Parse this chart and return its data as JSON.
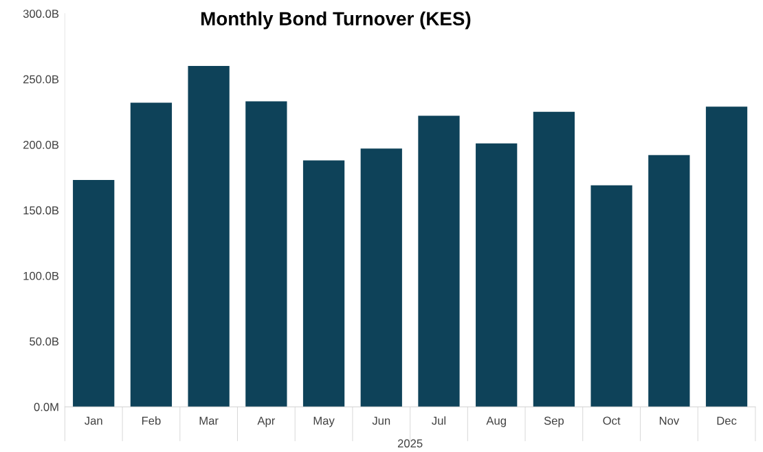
{
  "chart_data": {
    "type": "bar",
    "title": "Monthly Bond Turnover (KES)",
    "xlabel": "2025",
    "categories": [
      "Jan",
      "Feb",
      "Mar",
      "Apr",
      "May",
      "Jun",
      "Jul",
      "Aug",
      "Sep",
      "Oct",
      "Nov",
      "Dec"
    ],
    "values": [
      173,
      232,
      260,
      233,
      188,
      197,
      222,
      201,
      225,
      169,
      192,
      229
    ],
    "color": "#0e4259",
    "ylim": [
      0,
      300
    ],
    "yticks": [
      {
        "value": 0,
        "label": "0.0M"
      },
      {
        "value": 50,
        "label": "50.0B"
      },
      {
        "value": 100,
        "label": "100.0B"
      },
      {
        "value": 150,
        "label": "150.0B"
      },
      {
        "value": 200,
        "label": "200.0B"
      },
      {
        "value": 250,
        "label": "250.0B"
      },
      {
        "value": 300,
        "label": "300.0B"
      }
    ],
    "grid": false,
    "legend": false
  }
}
